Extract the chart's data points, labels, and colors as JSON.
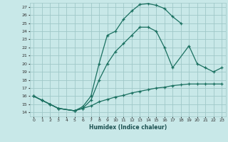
{
  "xlabel": "Humidex (Indice chaleur)",
  "bg_color": "#c8e8e8",
  "grid_color": "#a0c8c8",
  "line_color": "#1a7060",
  "xlim": [
    -0.5,
    23.5
  ],
  "ylim": [
    13.5,
    27.5
  ],
  "xticks": [
    0,
    1,
    2,
    3,
    4,
    5,
    6,
    7,
    8,
    9,
    10,
    11,
    12,
    13,
    14,
    15,
    16,
    17,
    18,
    19,
    20,
    21,
    22,
    23
  ],
  "yticks": [
    14,
    15,
    16,
    17,
    18,
    19,
    20,
    21,
    22,
    23,
    24,
    25,
    26,
    27
  ],
  "line1_x": [
    0,
    1,
    2,
    3,
    5,
    6,
    7,
    8,
    9,
    10,
    11,
    12,
    13,
    14,
    15,
    16,
    17,
    18
  ],
  "line1_y": [
    16,
    15.5,
    15,
    14.5,
    14.2,
    14.7,
    16.0,
    20.0,
    23.5,
    24.0,
    25.5,
    26.5,
    27.3,
    27.4,
    27.2,
    26.8,
    25.8,
    25.0
  ],
  "line2_x": [
    0,
    1,
    2,
    3,
    5,
    6,
    7,
    8,
    9,
    10,
    11,
    12,
    13,
    14,
    15,
    16,
    17,
    19,
    20,
    21,
    22,
    23
  ],
  "line2_y": [
    16,
    15.5,
    15,
    14.5,
    14.2,
    14.5,
    15.5,
    18.0,
    20.0,
    21.5,
    22.5,
    23.5,
    24.5,
    24.5,
    24.0,
    22.0,
    19.5,
    22.2,
    20.0,
    19.5,
    19.0,
    19.5
  ],
  "line3_x": [
    0,
    1,
    2,
    3,
    5,
    6,
    7,
    8,
    9,
    10,
    11,
    12,
    13,
    14,
    15,
    16,
    17,
    18,
    19,
    20,
    21,
    22,
    23
  ],
  "line3_y": [
    16,
    15.5,
    15,
    14.5,
    14.2,
    14.5,
    14.8,
    15.3,
    15.6,
    15.9,
    16.1,
    16.4,
    16.6,
    16.8,
    17.0,
    17.1,
    17.3,
    17.4,
    17.5,
    17.5,
    17.5,
    17.5,
    17.5
  ]
}
